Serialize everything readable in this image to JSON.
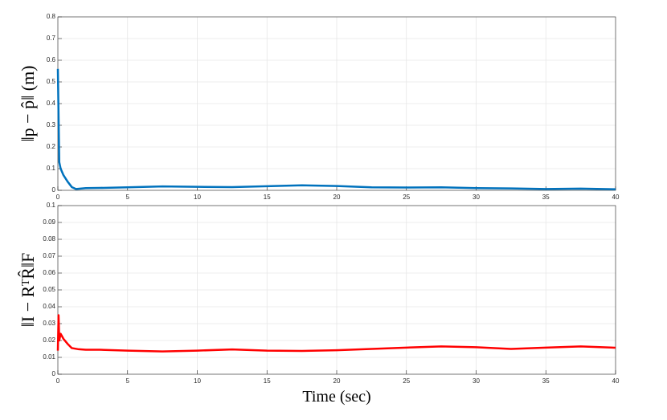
{
  "chart_data": [
    {
      "type": "line",
      "y_label": "‖p − p̂‖ (m)",
      "xlim": [
        0,
        40
      ],
      "xticks": [
        0,
        5,
        10,
        15,
        20,
        25,
        30,
        35,
        40
      ],
      "ylim": [
        0,
        0.8
      ],
      "yticks": [
        0,
        0.1,
        0.2,
        0.3,
        0.4,
        0.5,
        0.6,
        0.7,
        0.8
      ],
      "grid": true,
      "series": [
        {
          "color": "#0072bd",
          "x": [
            0,
            0.1,
            0.2,
            0.4,
            0.7,
            1,
            1.3,
            2,
            3,
            5,
            7.5,
            10,
            12.5,
            15,
            17.5,
            20,
            22.5,
            25,
            27.5,
            30,
            32.5,
            35,
            37.5,
            40
          ],
          "values": [
            0.56,
            0.13,
            0.1,
            0.07,
            0.04,
            0.015,
            0.006,
            0.01,
            0.011,
            0.014,
            0.018,
            0.016,
            0.015,
            0.019,
            0.023,
            0.02,
            0.014,
            0.013,
            0.014,
            0.01,
            0.009,
            0.006,
            0.008,
            0.005
          ]
        }
      ]
    },
    {
      "type": "line",
      "y_label": "‖I − RᵀR̂‖F",
      "x_label": "Time (sec)",
      "xlim": [
        0,
        40
      ],
      "xticks": [
        0,
        5,
        10,
        15,
        20,
        25,
        30,
        35,
        40
      ],
      "ylim": [
        0,
        0.1
      ],
      "yticks": [
        0,
        0.01,
        0.02,
        0.03,
        0.04,
        0.05,
        0.06,
        0.07,
        0.08,
        0.09,
        0.1
      ],
      "grid": true,
      "series": [
        {
          "color": "#ff0000",
          "x": [
            0,
            0.05,
            0.1,
            0.2,
            0.4,
            0.7,
            1,
            1.5,
            2,
            3,
            5,
            7.5,
            10,
            12.5,
            15,
            17.5,
            20,
            22.5,
            25,
            27.5,
            30,
            32.5,
            35,
            37.5,
            40
          ],
          "values": [
            0.014,
            0.035,
            0.02,
            0.024,
            0.021,
            0.018,
            0.0155,
            0.0148,
            0.0145,
            0.0145,
            0.014,
            0.0135,
            0.014,
            0.0147,
            0.014,
            0.0138,
            0.0142,
            0.015,
            0.0158,
            0.0165,
            0.016,
            0.015,
            0.0158,
            0.0165,
            0.0157
          ]
        }
      ]
    }
  ]
}
